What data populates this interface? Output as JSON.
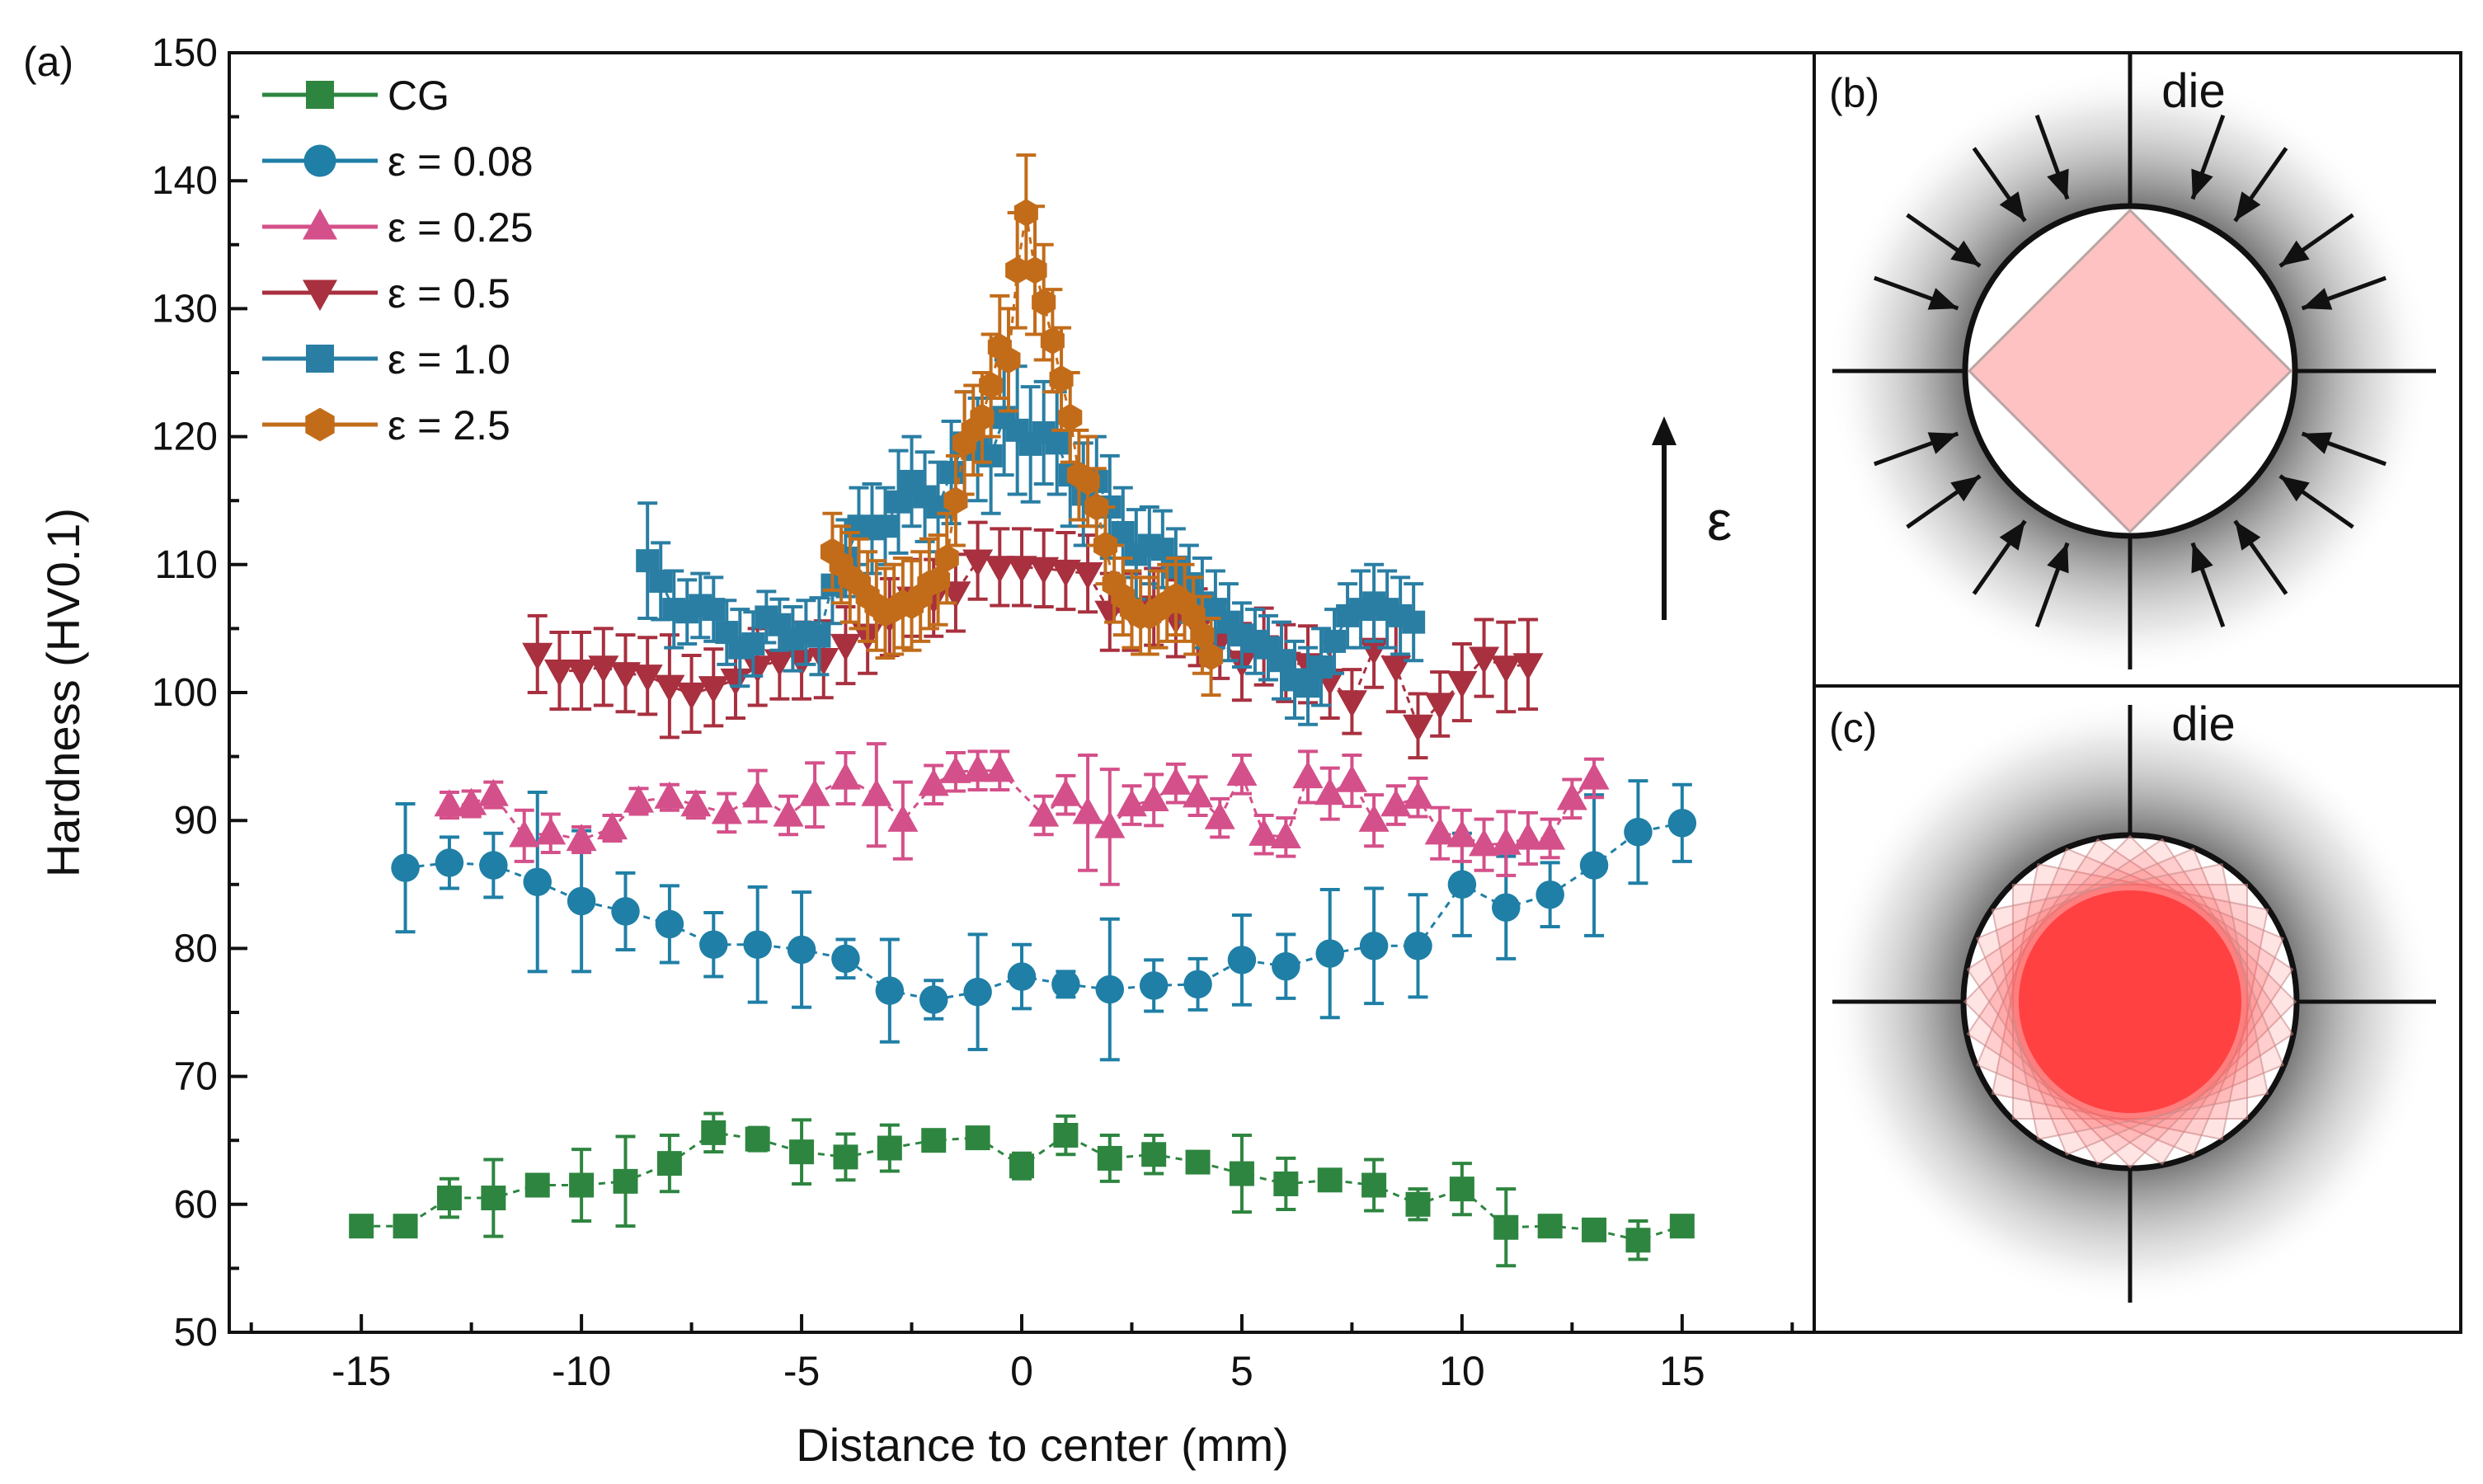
{
  "colors": {
    "cg": "#2e8540",
    "e008": "#1f7fa6",
    "e025": "#d4508a",
    "e05": "#a8303f",
    "e10": "#2a7ea3",
    "e25": "#c26c1a",
    "diamond": "#ffc2c2",
    "disc": "#ff3b3b"
  },
  "panel_a": {
    "label": "(a)",
    "epsilon_arrow_label": "ε"
  },
  "panel_b": {
    "label": "(b)",
    "die_label": "die"
  },
  "panel_c": {
    "label": "(c)",
    "die_label": "die"
  },
  "chart_data": {
    "type": "scatter",
    "title": "",
    "xlabel": "Distance to center (mm)",
    "ylabel": "Hardness (HV0.1)",
    "xlim": [
      -18,
      18
    ],
    "ylim": [
      50,
      150
    ],
    "xticks": [
      -15,
      -10,
      -5,
      0,
      5,
      10,
      15
    ],
    "yticks": [
      50,
      60,
      70,
      80,
      90,
      100,
      110,
      120,
      130,
      140,
      150
    ],
    "legend_position": "top-left",
    "series": [
      {
        "name": "CG",
        "marker": "square",
        "color_key": "cg",
        "x": [
          -15,
          -14,
          -13,
          -12,
          -11,
          -10,
          -9,
          -8,
          -7,
          -6,
          -5,
          -4,
          -3,
          -2,
          -1,
          0,
          1,
          2,
          3,
          4,
          5,
          6,
          7,
          8,
          9,
          10,
          11,
          12,
          13,
          14,
          15
        ],
        "y": [
          58.3,
          58.3,
          60.5,
          60.5,
          61.5,
          61.5,
          61.8,
          63.2,
          65.6,
          65.1,
          64.1,
          63.7,
          64.4,
          65.0,
          65.2,
          63.0,
          65.4,
          63.6,
          63.9,
          63.3,
          62.4,
          61.6,
          61.9,
          61.5,
          60.0,
          61.2,
          58.2,
          58.3,
          58.0,
          57.2,
          58.3
        ],
        "err": [
          0.5,
          0.5,
          1.5,
          3.0,
          0.8,
          2.8,
          3.5,
          2.2,
          1.5,
          0.9,
          2.5,
          1.8,
          1.8,
          0.6,
          0.6,
          1.0,
          1.5,
          1.8,
          1.5,
          0.8,
          3.0,
          2.0,
          0.6,
          2.0,
          1.2,
          2.0,
          3.0,
          0.6,
          0.6,
          1.5,
          0.5
        ]
      },
      {
        "name": "ε = 0.08",
        "marker": "circle",
        "color_key": "e008",
        "x": [
          -14,
          -13,
          -12,
          -11,
          -10,
          -9,
          -8,
          -7,
          -6,
          -5,
          -4,
          -3,
          -2,
          -1,
          0,
          1,
          2,
          3,
          4,
          5,
          6,
          7,
          8,
          9,
          10,
          11,
          12,
          13,
          14,
          15
        ],
        "y": [
          86.3,
          86.7,
          86.5,
          85.2,
          83.7,
          82.9,
          81.9,
          80.3,
          80.3,
          79.9,
          79.2,
          76.7,
          76.0,
          76.6,
          77.8,
          77.2,
          76.8,
          77.1,
          77.2,
          79.1,
          78.6,
          79.6,
          80.2,
          80.2,
          85.0,
          83.2,
          84.2,
          86.5,
          89.1,
          89.8
        ],
        "err": [
          5.0,
          2.0,
          2.5,
          7.0,
          5.5,
          3.0,
          3.0,
          2.5,
          4.5,
          4.5,
          1.5,
          4.0,
          1.5,
          4.5,
          2.5,
          1.0,
          5.5,
          2.0,
          2.0,
          3.5,
          2.5,
          5.0,
          4.5,
          4.0,
          4.0,
          4.0,
          2.5,
          5.5,
          4.0,
          3.0
        ]
      },
      {
        "name": "ε = 0.25",
        "marker": "triangle-up",
        "color_key": "e025",
        "x": [
          -13,
          -12.5,
          -12,
          -11.3,
          -10.7,
          -10,
          -9.3,
          -8.7,
          -8,
          -7.4,
          -6.7,
          -6,
          -5.3,
          -4.7,
          -4,
          -3.3,
          -2.7,
          -2,
          -1.5,
          -1,
          -0.5,
          0.5,
          1,
          1.5,
          2,
          2.5,
          3,
          3.5,
          4,
          4.5,
          5,
          5.5,
          6,
          6.5,
          7,
          7.5,
          8,
          8.5,
          9,
          9.5,
          10,
          10.5,
          11,
          11.5,
          12,
          12.5,
          13
        ],
        "y": [
          91.2,
          91.3,
          92.0,
          88.8,
          89.0,
          88.5,
          89.4,
          91.5,
          91.8,
          91.2,
          90.6,
          91.9,
          90.4,
          92.0,
          93.3,
          92.0,
          90.0,
          92.8,
          93.8,
          93.9,
          93.9,
          90.4,
          92.0,
          90.6,
          89.5,
          91.2,
          91.6,
          92.9,
          91.9,
          90.2,
          93.6,
          88.9,
          88.7,
          93.4,
          92.1,
          93.1,
          90.0,
          91.2,
          91.8,
          89.0,
          88.8,
          88.1,
          88.2,
          88.6,
          88.6,
          91.7,
          93.3
        ],
        "err": [
          1.0,
          1.0,
          1.0,
          2.0,
          1.5,
          1.0,
          1.0,
          1.0,
          1.0,
          1.0,
          1.5,
          2.0,
          1.5,
          2.5,
          2.0,
          4.0,
          3.0,
          1.5,
          1.5,
          1.5,
          1.5,
          1.5,
          1.5,
          4.5,
          4.5,
          1.5,
          2.0,
          1.5,
          1.5,
          1.5,
          1.5,
          1.5,
          1.5,
          2.0,
          2.0,
          2.0,
          2.0,
          1.5,
          1.5,
          2.0,
          2.0,
          2.0,
          2.5,
          2.0,
          1.5,
          1.5,
          1.5
        ]
      },
      {
        "name": "ε = 0.5",
        "marker": "triangle-down",
        "color_key": "e05",
        "x": [
          -11,
          -10.5,
          -10,
          -9.5,
          -9,
          -8.5,
          -8,
          -7.5,
          -7,
          -6.5,
          -6,
          -5.5,
          -5,
          -4.5,
          -4,
          -3.5,
          -3,
          -2.5,
          -2,
          -1.5,
          -1,
          -0.5,
          0,
          0.5,
          1,
          1.5,
          2,
          2.5,
          3,
          3.5,
          4,
          4.5,
          5,
          5.5,
          6,
          6.5,
          7,
          7.5,
          8,
          8.5,
          9,
          9.5,
          10,
          10.5,
          11,
          11.5
        ],
        "y": [
          103.0,
          101.7,
          101.7,
          102.0,
          101.5,
          101.3,
          100.5,
          99.9,
          100.4,
          101.0,
          102.0,
          102.5,
          102.5,
          102.6,
          103.7,
          104.5,
          105.9,
          107.4,
          107.4,
          107.8,
          110.3,
          109.8,
          109.8,
          109.7,
          109.5,
          109.3,
          106.3,
          106.3,
          106.7,
          105.8,
          105.1,
          104.1,
          102.4,
          103.6,
          102.3,
          102.2,
          101.0,
          99.3,
          103.4,
          102.0,
          97.4,
          99.1,
          100.8,
          102.7,
          102.0,
          102.2
        ],
        "err": [
          3.0,
          3.0,
          3.0,
          3.0,
          3.0,
          3.0,
          4.0,
          3.0,
          3.0,
          3.0,
          3.0,
          3.0,
          3.0,
          3.0,
          3.0,
          3.0,
          3.0,
          3.0,
          3.0,
          3.0,
          3.0,
          3.0,
          3.0,
          3.0,
          3.0,
          3.0,
          3.0,
          3.0,
          3.0,
          3.0,
          3.0,
          3.0,
          3.0,
          3.0,
          3.0,
          3.0,
          3.0,
          2.5,
          3.0,
          3.5,
          2.5,
          2.5,
          3.0,
          3.0,
          3.5,
          3.5
        ]
      },
      {
        "name": "ε = 1.0",
        "marker": "square",
        "color_key": "e10",
        "x": [
          -8.5,
          -8.2,
          -7.9,
          -7.6,
          -7.3,
          -7.0,
          -6.7,
          -6.4,
          -6.1,
          -5.8,
          -5.5,
          -5.2,
          -4.9,
          -4.6,
          -4.3,
          -4.0,
          -3.7,
          -3.4,
          -3.1,
          -2.8,
          -2.5,
          -2.2,
          -1.9,
          -1.6,
          -1.3,
          -1.0,
          -0.7,
          -0.4,
          -0.1,
          0.2,
          0.5,
          0.8,
          1.1,
          1.4,
          1.7,
          2.0,
          2.3,
          2.6,
          2.9,
          3.2,
          3.5,
          3.8,
          4.1,
          4.4,
          4.7,
          5.0,
          5.3,
          5.6,
          5.9,
          6.2,
          6.5,
          6.8,
          7.1,
          7.4,
          7.7,
          8.0,
          8.3,
          8.6,
          8.9
        ],
        "y": [
          110.3,
          108.7,
          106.5,
          106.3,
          106.8,
          106.5,
          104.7,
          103.5,
          103.8,
          105.9,
          105.3,
          104.2,
          104.7,
          104.4,
          108.4,
          110.5,
          113.0,
          112.8,
          113.0,
          114.9,
          116.5,
          115.3,
          114.5,
          117.2,
          119.5,
          119.0,
          118.5,
          121.5,
          120.5,
          119.4,
          120.3,
          119.5,
          117.0,
          115.5,
          116.5,
          114.5,
          112.5,
          110.8,
          111.5,
          111.2,
          109.8,
          108.5,
          107.0,
          106.5,
          105.5,
          104.5,
          104.0,
          103.5,
          102.5,
          101.0,
          100.5,
          102.0,
          104.0,
          106.0,
          106.5,
          107.0,
          106.5,
          106.0,
          105.5
        ],
        "err": [
          4.5,
          3.0,
          3.0,
          2.5,
          2.5,
          2.5,
          2.5,
          3.0,
          2.5,
          2.0,
          2.0,
          2.5,
          2.5,
          3.0,
          3.0,
          3.0,
          3.0,
          3.5,
          3.0,
          4.0,
          3.5,
          3.5,
          3.5,
          4.0,
          4.0,
          4.0,
          4.5,
          4.5,
          5.0,
          4.5,
          4.0,
          4.0,
          4.0,
          4.0,
          3.5,
          4.0,
          3.5,
          3.5,
          3.0,
          3.0,
          3.0,
          3.0,
          3.5,
          3.0,
          3.0,
          2.5,
          2.5,
          2.5,
          3.0,
          3.0,
          3.0,
          3.0,
          2.5,
          2.5,
          3.0,
          3.0,
          3.0,
          3.0,
          3.0
        ]
      },
      {
        "name": "ε = 2.5",
        "marker": "hexagon",
        "color_key": "e25",
        "x": [
          -4.3,
          -4.1,
          -3.9,
          -3.7,
          -3.5,
          -3.3,
          -3.1,
          -2.9,
          -2.7,
          -2.5,
          -2.3,
          -2.1,
          -1.9,
          -1.7,
          -1.5,
          -1.3,
          -1.1,
          -0.9,
          -0.7,
          -0.5,
          -0.3,
          -0.1,
          0.1,
          0.3,
          0.5,
          0.7,
          0.9,
          1.1,
          1.3,
          1.5,
          1.7,
          1.9,
          2.1,
          2.3,
          2.5,
          2.7,
          2.9,
          3.1,
          3.3,
          3.5,
          3.7,
          3.9,
          4.1,
          4.3
        ],
        "y": [
          111.0,
          110.0,
          109.0,
          108.5,
          107.5,
          106.8,
          106.2,
          106.5,
          107.0,
          106.8,
          107.5,
          108.5,
          108.8,
          110.5,
          115.0,
          119.5,
          120.5,
          121.5,
          124.0,
          127.0,
          126.0,
          133.0,
          137.5,
          133.0,
          130.5,
          127.5,
          124.5,
          121.5,
          117.0,
          116.5,
          114.5,
          111.5,
          108.5,
          107.5,
          106.5,
          106.0,
          106.0,
          106.5,
          107.0,
          107.5,
          107.0,
          106.0,
          104.5,
          102.8
        ],
        "err": [
          3.0,
          3.0,
          3.5,
          3.5,
          3.5,
          3.5,
          3.5,
          3.5,
          3.5,
          3.5,
          3.5,
          3.5,
          3.5,
          3.5,
          3.5,
          4.0,
          3.5,
          3.5,
          4.0,
          4.0,
          4.0,
          4.5,
          4.5,
          5.0,
          4.5,
          4.0,
          4.0,
          3.5,
          3.5,
          3.5,
          3.0,
          3.0,
          3.0,
          3.0,
          3.0,
          3.0,
          3.0,
          3.0,
          3.0,
          3.0,
          3.0,
          3.0,
          3.0,
          3.0
        ]
      }
    ]
  }
}
